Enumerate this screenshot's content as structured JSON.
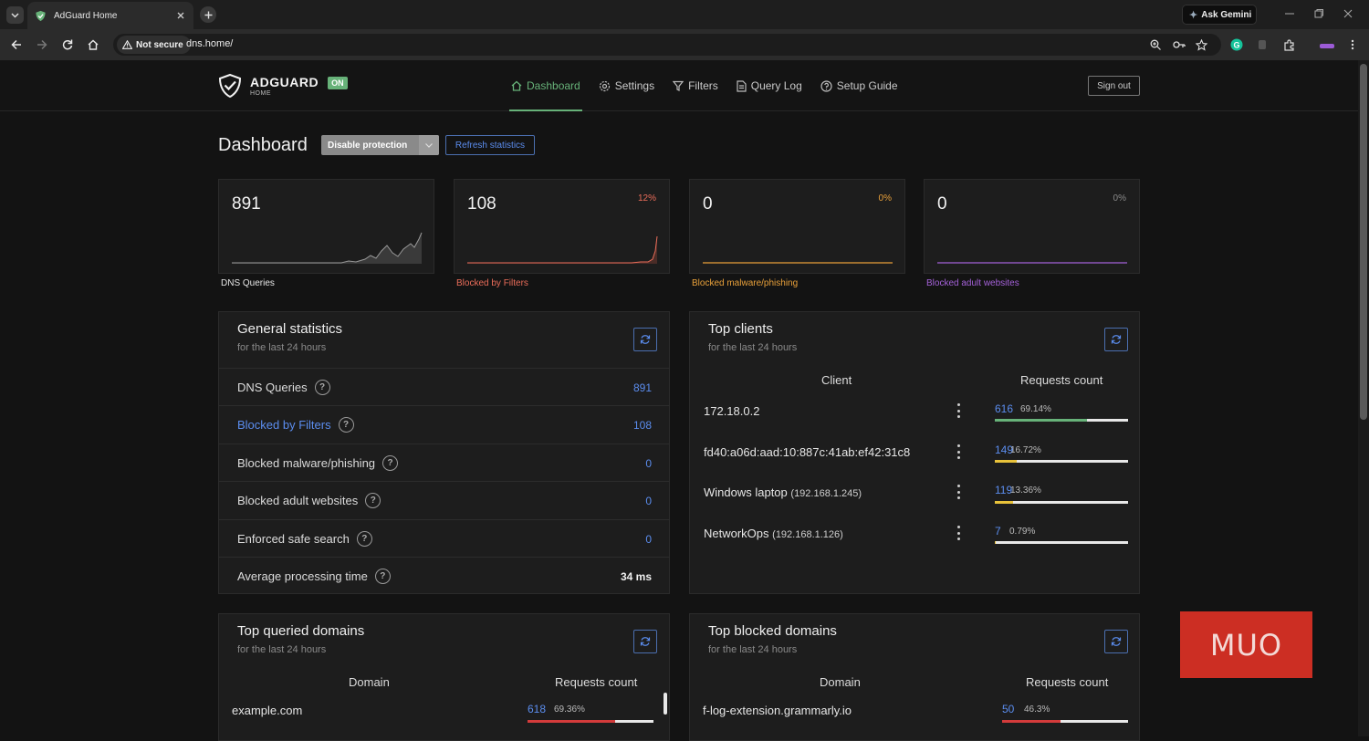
{
  "browser": {
    "tab_title": "AdGuard Home",
    "url": "dns.home/",
    "security_label": "Not secure",
    "gemini_label": "Ask Gemini"
  },
  "app": {
    "logo_name": "ADGUARD",
    "logo_sub": "HOME",
    "status_badge": "ON",
    "nav": [
      {
        "label": "Dashboard",
        "icon": "home-icon",
        "active": true
      },
      {
        "label": "Settings",
        "icon": "gear-icon",
        "active": false
      },
      {
        "label": "Filters",
        "icon": "filter-icon",
        "active": false
      },
      {
        "label": "Query Log",
        "icon": "document-icon",
        "active": false
      },
      {
        "label": "Setup Guide",
        "icon": "help-circle-icon",
        "active": false
      }
    ],
    "sign_out": "Sign out"
  },
  "dashboard": {
    "title": "Dashboard",
    "disable_label": "Disable protection",
    "refresh_label": "Refresh statistics"
  },
  "stat_cards": [
    {
      "value": "891",
      "percent": "",
      "label": "DNS Queries",
      "color": "#ffffff"
    },
    {
      "value": "108",
      "percent": "12%",
      "label": "Blocked by Filters",
      "color": "#eb6d5a"
    },
    {
      "value": "0",
      "percent": "0%",
      "label": "Blocked malware/phishing",
      "color": "#e8a03a"
    },
    {
      "value": "0",
      "percent": "0%",
      "label": "Blocked adult websites",
      "color": "#a461d8"
    }
  ],
  "general": {
    "title": "General statistics",
    "subtitle": "for the last 24 hours",
    "rows": [
      {
        "label": "DNS Queries",
        "value": "891"
      },
      {
        "label": "Blocked by Filters",
        "value": "108"
      },
      {
        "label": "Blocked malware/phishing",
        "value": "0"
      },
      {
        "label": "Blocked adult websites",
        "value": "0"
      },
      {
        "label": "Enforced safe search",
        "value": "0"
      },
      {
        "label": "Average processing time",
        "value": "34 ms"
      }
    ]
  },
  "top_clients": {
    "title": "Top clients",
    "subtitle": "for the last 24 hours",
    "col_client": "Client",
    "col_count": "Requests count",
    "rows": [
      {
        "name": "172.18.0.2",
        "ip": "",
        "count": "616",
        "percent": "69.14%",
        "fraction": 0.6914,
        "color": "#67b279"
      },
      {
        "name": "fd40:a06d:aad:10:887c:41ab:ef42:31c8",
        "ip": "",
        "count": "149",
        "percent": "16.72%",
        "fraction": 0.1672,
        "color": "#e8c23a"
      },
      {
        "name": "Windows laptop",
        "ip": "(192.168.1.245)",
        "count": "119",
        "percent": "13.36%",
        "fraction": 0.1336,
        "color": "#e8c23a"
      },
      {
        "name": "NetworkOps",
        "ip": "(192.168.1.126)",
        "count": "7",
        "percent": "0.79%",
        "fraction": 0.0079,
        "color": "#e8c23a"
      }
    ]
  },
  "top_queried": {
    "title": "Top queried domains",
    "subtitle": "for the last 24 hours",
    "col_domain": "Domain",
    "col_count": "Requests count",
    "rows": [
      {
        "domain": "example.com",
        "count": "618",
        "percent": "69.36%",
        "fraction": 0.6936,
        "color": "#d33b3b"
      }
    ]
  },
  "top_blocked": {
    "title": "Top blocked domains",
    "subtitle": "for the last 24 hours",
    "col_domain": "Domain",
    "col_count": "Requests count",
    "rows": [
      {
        "domain": "f-log-extension.grammarly.io",
        "count": "50",
        "percent": "46.3%",
        "fraction": 0.463,
        "color": "#d33b3b"
      }
    ]
  },
  "watermark": "MUO"
}
